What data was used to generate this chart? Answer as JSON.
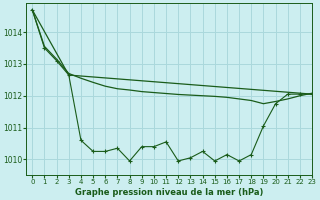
{
  "title": "Graphe pression niveau de la mer (hPa)",
  "background_color": "#cceef0",
  "grid_color": "#aad8dc",
  "line_color": "#1a5c1a",
  "xlim": [
    -0.5,
    23
  ],
  "ylim": [
    1009.5,
    1014.9
  ],
  "yticks": [
    1010,
    1011,
    1012,
    1013,
    1014
  ],
  "xticks": [
    0,
    1,
    2,
    3,
    4,
    5,
    6,
    7,
    8,
    9,
    10,
    11,
    12,
    13,
    14,
    15,
    16,
    17,
    18,
    19,
    20,
    21,
    22,
    23
  ],
  "series1_x": [
    0,
    1,
    2,
    3,
    4,
    5,
    6,
    7,
    8,
    9,
    10,
    11,
    12,
    13,
    14,
    15,
    16,
    17,
    18,
    19,
    20,
    21,
    22,
    23
  ],
  "series1_y": [
    1014.7,
    1013.5,
    1013.1,
    1012.65,
    1010.6,
    1010.25,
    1010.25,
    1010.35,
    1009.95,
    1010.4,
    1010.4,
    1010.55,
    1009.95,
    1010.05,
    1010.25,
    1009.95,
    1010.15,
    1009.95,
    1010.15,
    1011.05,
    1011.75,
    1012.05,
    1012.05,
    1012.05
  ],
  "series2_x": [
    0,
    3,
    23
  ],
  "series2_y": [
    1014.7,
    1012.65,
    1012.05
  ],
  "series3_x": [
    0,
    1,
    2,
    3,
    4,
    5,
    6,
    7,
    8,
    9,
    10,
    11,
    12,
    13,
    14,
    15,
    16,
    17,
    18,
    19,
    20,
    21,
    22,
    23
  ],
  "series3_y": [
    1014.7,
    1013.55,
    1013.15,
    1012.7,
    1012.55,
    1012.42,
    1012.3,
    1012.22,
    1012.18,
    1012.13,
    1012.1,
    1012.07,
    1012.04,
    1012.02,
    1012.0,
    1011.98,
    1011.95,
    1011.9,
    1011.85,
    1011.75,
    1011.82,
    1011.9,
    1012.0,
    1012.08
  ]
}
